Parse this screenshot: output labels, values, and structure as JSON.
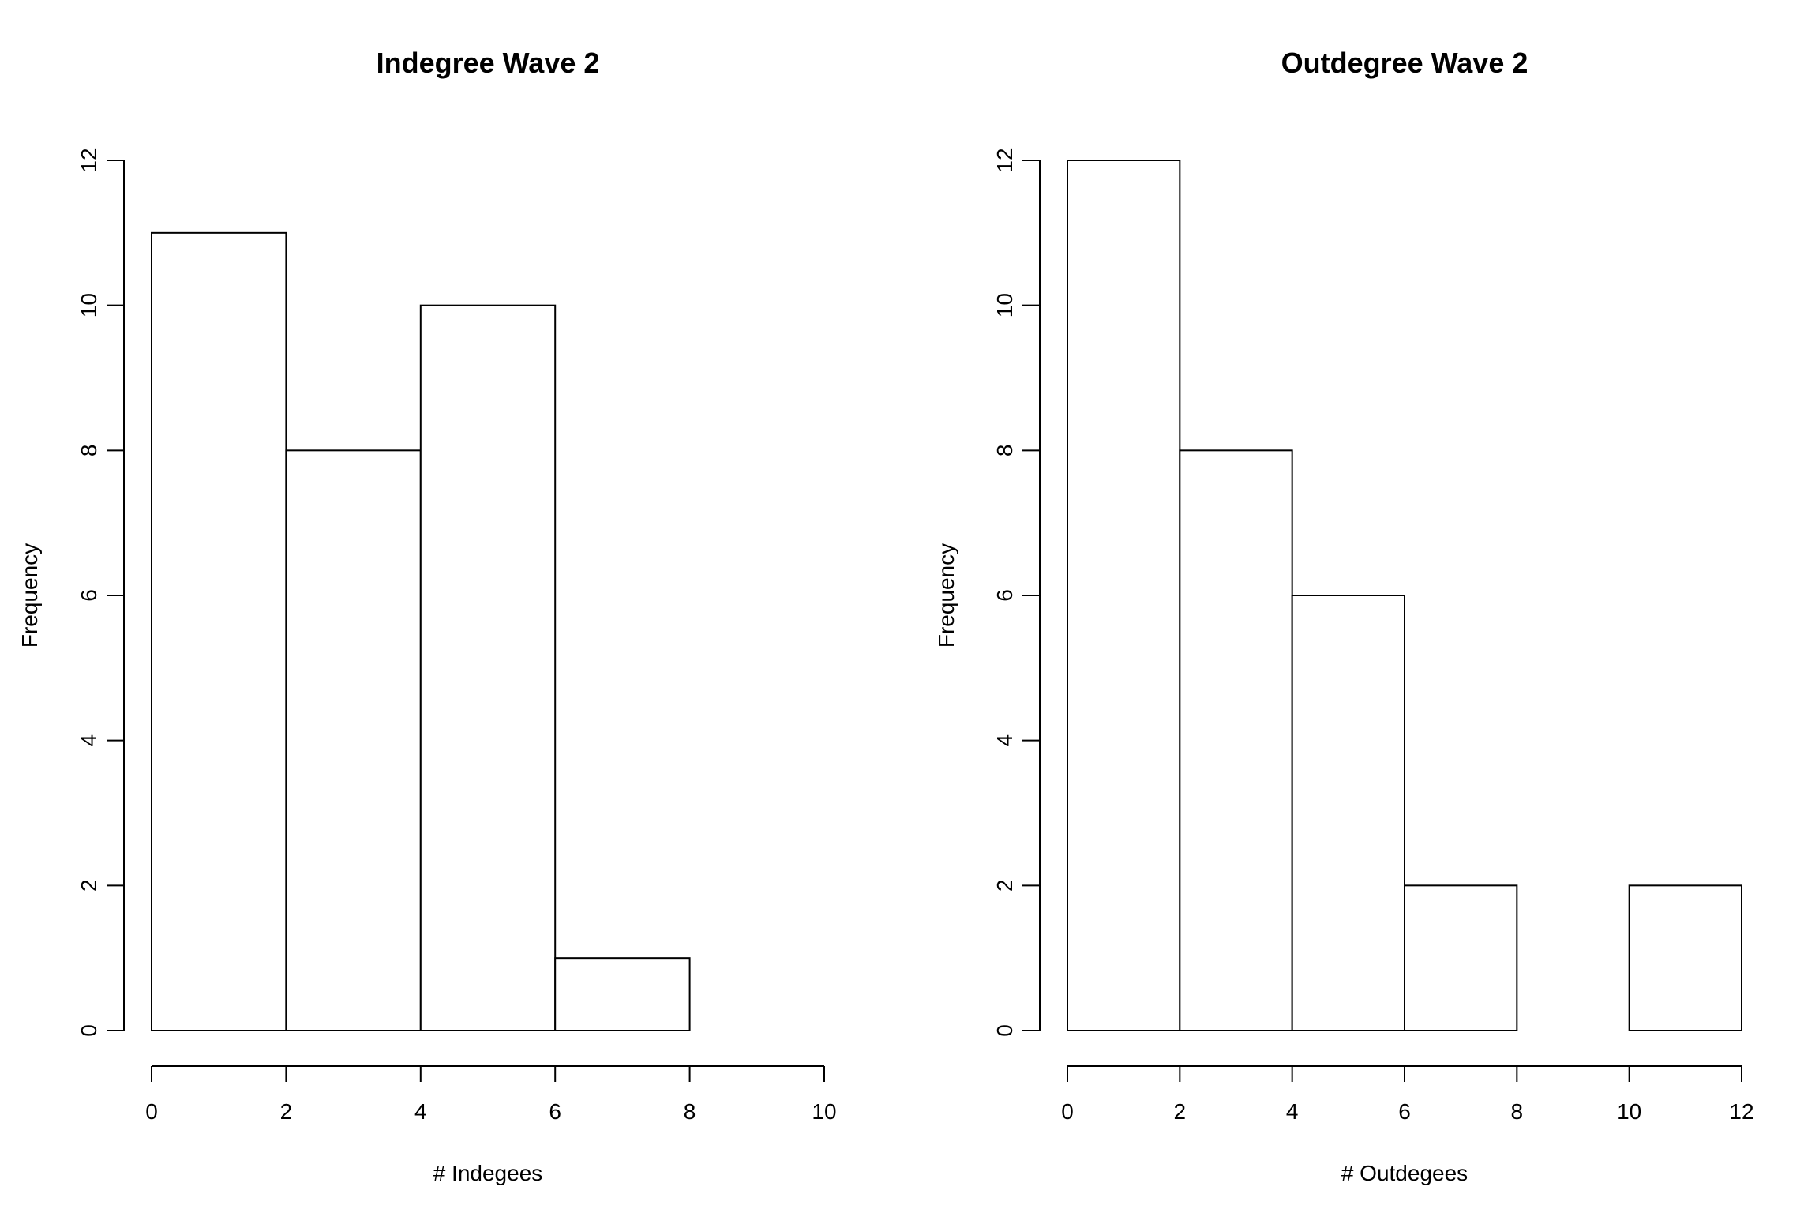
{
  "chart_data": [
    {
      "type": "bar",
      "title": "Indegree Wave 2",
      "xlabel": "# Indegees",
      "ylabel": "Frequency",
      "bins": [
        [
          0,
          2
        ],
        [
          2,
          4
        ],
        [
          4,
          6
        ],
        [
          6,
          8
        ]
      ],
      "values": [
        11,
        8,
        10,
        1
      ],
      "xlim": [
        0,
        10
      ],
      "ylim": [
        0,
        12
      ],
      "xticks": [
        0,
        2,
        4,
        6,
        8,
        10
      ],
      "yticks": [
        0,
        2,
        4,
        6,
        8,
        10,
        12
      ],
      "grid": false
    },
    {
      "type": "bar",
      "title": "Outdegree Wave 2",
      "xlabel": "# Outdegees",
      "ylabel": "Frequency",
      "bins": [
        [
          0,
          2
        ],
        [
          2,
          4
        ],
        [
          4,
          6
        ],
        [
          6,
          8
        ],
        [
          8,
          10
        ],
        [
          10,
          12
        ]
      ],
      "values": [
        12,
        8,
        6,
        2,
        0,
        2
      ],
      "xlim": [
        0,
        12
      ],
      "ylim": [
        0,
        12
      ],
      "xticks": [
        0,
        2,
        4,
        6,
        8,
        10,
        12
      ],
      "yticks": [
        0,
        2,
        4,
        6,
        8,
        10,
        12
      ],
      "grid": false
    }
  ]
}
